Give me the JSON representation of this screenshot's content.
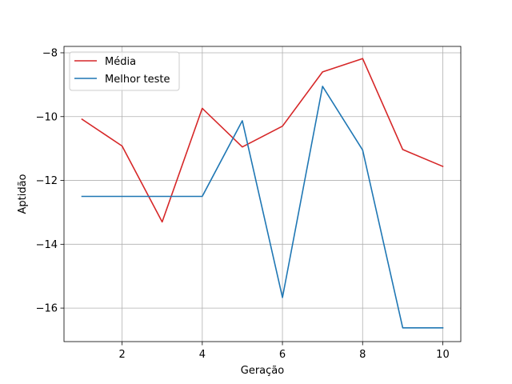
{
  "chart_data": {
    "type": "line",
    "xlabel": "Geração",
    "ylabel": "Aptidão",
    "x": [
      1,
      2,
      3,
      4,
      5,
      6,
      7,
      8,
      9,
      10
    ],
    "xlim": [
      0.55,
      10.45
    ],
    "ylim": [
      -17.05,
      -7.8
    ],
    "xticks": [
      2,
      4,
      6,
      8,
      10
    ],
    "yticks": [
      -16,
      -14,
      -12,
      -10,
      -8
    ],
    "ytick_labels": [
      "−16",
      "−14",
      "−12",
      "−10",
      "−8"
    ],
    "grid": true,
    "legend_position": "top-left",
    "series": [
      {
        "name": "Média",
        "color": "#d62728",
        "values": [
          -10.08,
          -10.92,
          -13.3,
          -9.74,
          -10.95,
          -10.3,
          -8.6,
          -8.18,
          -11.03,
          -11.56
        ]
      },
      {
        "name": "Melhor teste",
        "color": "#1f77b4",
        "values": [
          -12.5,
          -12.5,
          -12.5,
          -12.5,
          -10.13,
          -15.67,
          -9.05,
          -11.05,
          -16.62,
          -16.62
        ]
      }
    ]
  }
}
